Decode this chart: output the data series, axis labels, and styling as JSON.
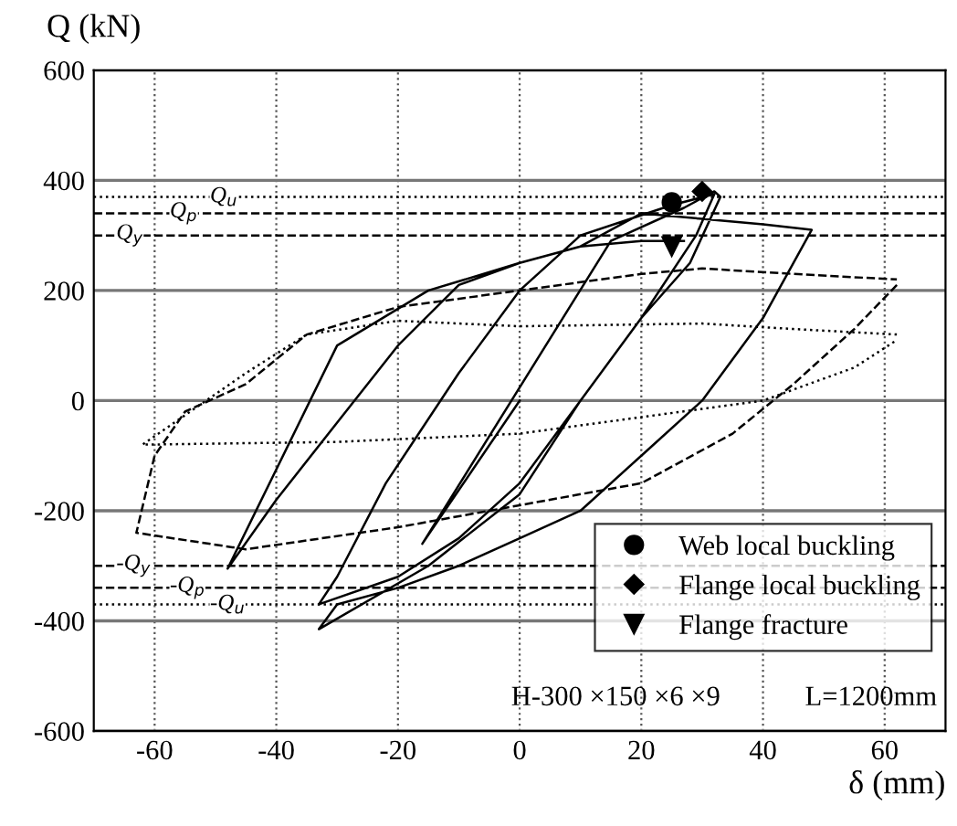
{
  "chart_data": {
    "type": "line",
    "xlabel": "δ (mm)",
    "ylabel": "Q (kN)",
    "xlim": [
      -70,
      70
    ],
    "ylim": [
      -600,
      600
    ],
    "xticks": [
      -60,
      -40,
      -20,
      0,
      20,
      40,
      60
    ],
    "yticks": [
      -600,
      -400,
      -200,
      0,
      200,
      400,
      600
    ],
    "grid": true,
    "legend": "bottom right",
    "series": [
      {
        "type": "line",
        "color": "#000000",
        "line_style": "dashed",
        "x": [
          62,
          55,
          45,
          35,
          20,
          0,
          -20,
          -45,
          -63,
          -60,
          -55,
          -45,
          -35,
          -20,
          0,
          20,
          30,
          45,
          62
        ],
        "values": [
          210,
          130,
          30,
          -60,
          -150,
          -190,
          -230,
          -270,
          -240,
          -100,
          -20,
          30,
          120,
          170,
          200,
          230,
          240,
          230,
          220
        ]
      },
      {
        "type": "line",
        "color": "#000000",
        "line_style": "dotted",
        "x": [
          62,
          45,
          30,
          0,
          -20,
          -35,
          -45,
          -62,
          -30,
          0,
          20,
          40,
          55,
          62
        ],
        "values": [
          120,
          130,
          140,
          135,
          145,
          120,
          50,
          -80,
          -75,
          -60,
          -30,
          0,
          60,
          110
        ]
      },
      {
        "type": "line",
        "color": "#000000",
        "line_style": "solid",
        "x": [
          0,
          -16,
          15,
          -16,
          15,
          27,
          32,
          33,
          28,
          20,
          10,
          0,
          -10,
          -20,
          -33,
          -30,
          -22,
          -10,
          0,
          10,
          25,
          32,
          29,
          20,
          10,
          0,
          -15,
          -33,
          -30,
          -20,
          -10,
          0,
          10,
          20,
          30,
          40,
          48,
          40,
          30,
          20,
          10,
          0,
          -15,
          -30,
          -48,
          -40,
          -30,
          -20,
          -10,
          0,
          10,
          20,
          27
        ],
        "values": [
          0,
          -260,
          290,
          -260,
          290,
          350,
          380,
          370,
          250,
          150,
          0,
          -150,
          -250,
          -320,
          -370,
          -320,
          -150,
          50,
          200,
          300,
          355,
          375,
          300,
          150,
          0,
          -170,
          -300,
          -415,
          -370,
          -340,
          -300,
          -250,
          -200,
          -100,
          0,
          150,
          310,
          320,
          330,
          340,
          280,
          250,
          200,
          100,
          -305,
          -180,
          -40,
          100,
          210,
          250,
          280,
          290,
          290
        ]
      },
      {
        "type": "scatter",
        "name": "Web local buckling",
        "color": "#000000",
        "marker": "circle",
        "x": [
          25
        ],
        "values": [
          360
        ]
      },
      {
        "type": "scatter",
        "name": "Flange local buckling",
        "color": "#000000",
        "marker": "diamond",
        "x": [
          30
        ],
        "values": [
          380
        ]
      },
      {
        "type": "scatter",
        "name": "Flange fracture",
        "color": "#000000",
        "marker": "triangle",
        "x": [
          25
        ],
        "values": [
          280
        ]
      }
    ],
    "ref_lines": [
      {
        "axis": "y",
        "value": 370,
        "label": "Q$_{u}$",
        "line_style": "dotted"
      },
      {
        "axis": "y",
        "value": 340,
        "label": "Q$_{p}$",
        "line_style": "dashed"
      },
      {
        "axis": "y",
        "value": 300,
        "label": "Q$_{y}$",
        "line_style": "dashed"
      },
      {
        "axis": "y",
        "value": -300,
        "label": "-Q$_{y}$",
        "line_style": "dashed"
      },
      {
        "axis": "y",
        "value": -340,
        "label": "-Q$_{p}$",
        "line_style": "dashed"
      },
      {
        "axis": "y",
        "value": -370,
        "label": "-Q$_{u}$",
        "line_style": "dotted"
      }
    ],
    "annotations": [
      "H-300 ×150 ×6 ×9",
      "L=1200mm"
    ]
  }
}
